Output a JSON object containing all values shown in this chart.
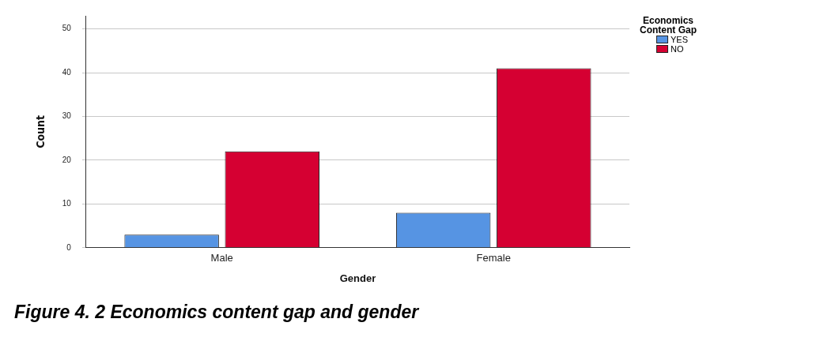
{
  "chart_data": {
    "type": "bar",
    "xlabel": "Gender",
    "ylabel": "Count",
    "legend_title": "Economics Content Gap",
    "categories": [
      "Male",
      "Female"
    ],
    "series": [
      {
        "name": "YES",
        "color": "#5694e3",
        "values": [
          3,
          8
        ]
      },
      {
        "name": "NO",
        "color": "#d50032",
        "values": [
          22,
          41
        ]
      }
    ],
    "ylim": [
      0,
      53
    ],
    "yticks": [
      0,
      10,
      20,
      30,
      40,
      50
    ],
    "grid": "y",
    "legend": "top right",
    "annotations": [
      "Figure 4. 2 Economics content gap and gender"
    ]
  }
}
